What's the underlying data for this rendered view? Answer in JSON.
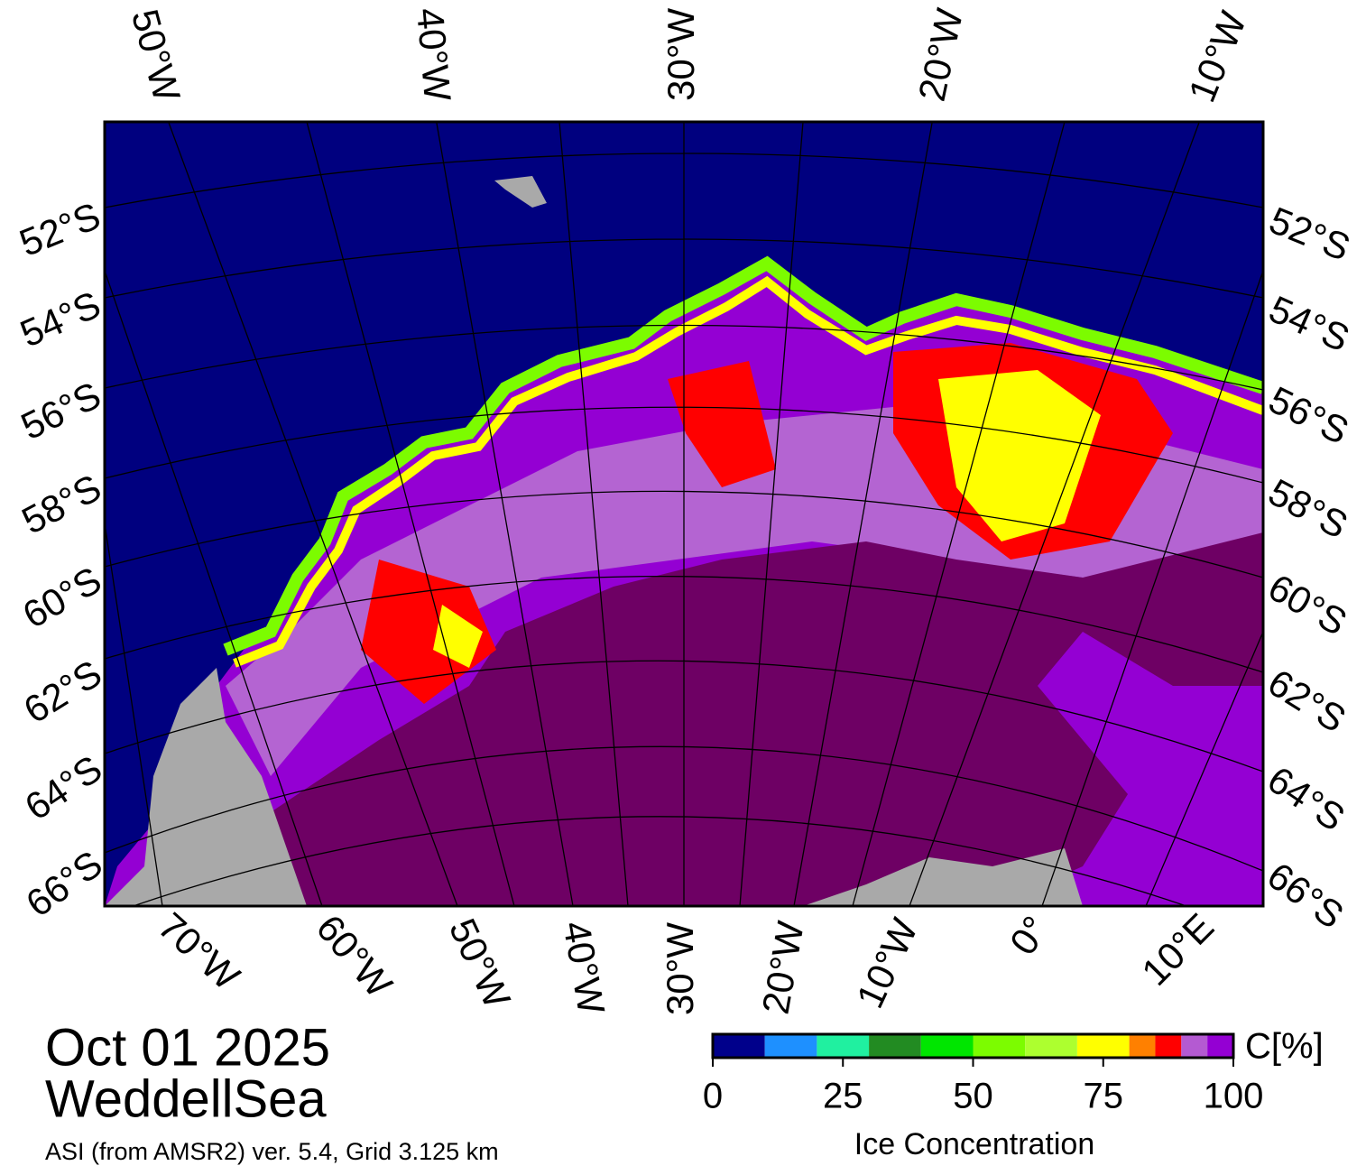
{
  "map": {
    "top_labels": [
      "50°W",
      "40°W",
      "30°W",
      "20°W",
      "10°W"
    ],
    "bottom_labels": [
      "70°W",
      "60°W",
      "50°W",
      "40°W",
      "30°W",
      "20°W",
      "10°W",
      "0°",
      "10°E"
    ],
    "left_labels": [
      "52°S",
      "54°S",
      "56°S",
      "58°S",
      "60°S",
      "62°S",
      "64°S",
      "66°S"
    ],
    "right_labels": [
      "52°S",
      "54°S",
      "56°S",
      "58°S",
      "60°S",
      "62°S",
      "64°S",
      "66°S"
    ]
  },
  "date": "Oct 01 2025",
  "region": "WeddellSea",
  "credit": "ASI (from AMSR2) ver. 5.4,  Grid 3.125 km",
  "colorbar": {
    "title": "Ice Concentration",
    "unit": "C[%]",
    "bounds": [
      0,
      10,
      20,
      30,
      40,
      50,
      60,
      70,
      80,
      85,
      90,
      95,
      100
    ],
    "colors": [
      "#00008b",
      "#1e90ff",
      "#20f0a0",
      "#228b22",
      "#00e600",
      "#7cfc00",
      "#adff2f",
      "#ffff00",
      "#ff8000",
      "#ff0000",
      "#b45ad2",
      "#9400d3"
    ],
    "ticks": [
      0,
      25,
      50,
      75,
      100
    ]
  }
}
